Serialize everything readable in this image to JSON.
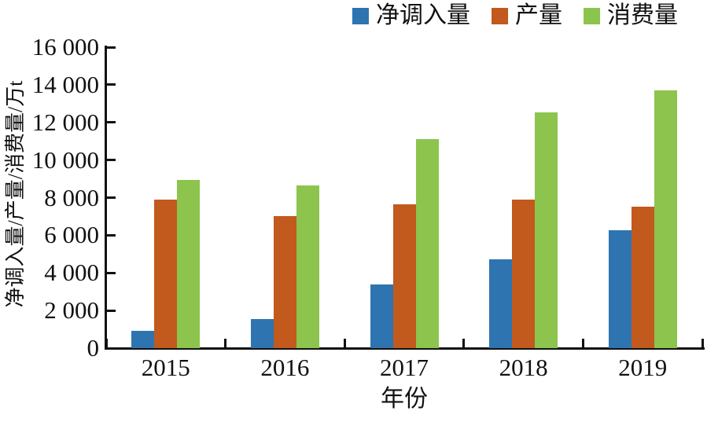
{
  "chart_data": {
    "type": "bar",
    "title": "",
    "categories": [
      "2015",
      "2016",
      "2017",
      "2018",
      "2019"
    ],
    "series": [
      {
        "name": "净调入量",
        "color": "#2e74b0",
        "values": [
          900,
          1550,
          3400,
          4700,
          6250
        ]
      },
      {
        "name": "产量",
        "color": "#c2591d",
        "values": [
          7900,
          7000,
          7650,
          7900,
          7500
        ]
      },
      {
        "name": "消费量",
        "color": "#8cc44d",
        "values": [
          8950,
          8650,
          11100,
          12550,
          13700
        ]
      }
    ],
    "xlabel": "年份",
    "ylabel": "净调入量/产量/消费量/万t",
    "ylim": [
      0,
      16000
    ],
    "ytick_step": 2000,
    "ytick_labels": [
      "0",
      "2 000",
      "4 000",
      "6 000",
      "8 000",
      "10 000",
      "12 000",
      "14 000",
      "16 000"
    ],
    "legend_position": "top-right",
    "grid": false,
    "axis_color": "#111111",
    "background_color": "#ffffff"
  }
}
